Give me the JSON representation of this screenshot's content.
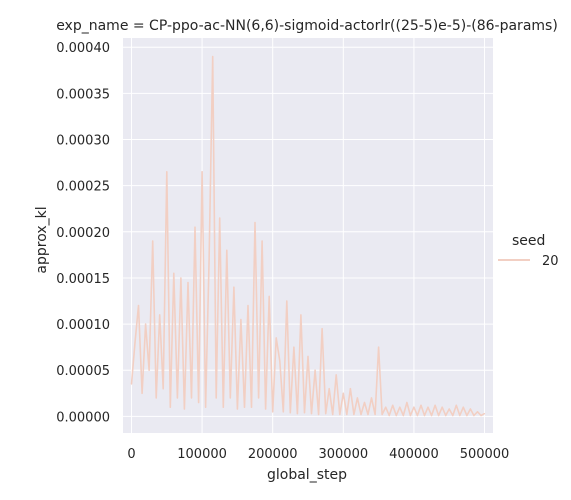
{
  "chart_data": {
    "type": "line",
    "title": "exp_name = CP-ppo-ac-NN(6,6)-sigmoid-actorlr((25-5)e-5)-(86-params)",
    "xlabel": "global_step",
    "ylabel": "approx_kl",
    "xlim": [
      -12000,
      512000
    ],
    "ylim": [
      -1.8e-05,
      0.00041
    ],
    "x_ticks": [
      0,
      100000,
      200000,
      300000,
      400000,
      500000
    ],
    "x_tick_labels": [
      "0",
      "100000",
      "200000",
      "300000",
      "400000",
      "500000"
    ],
    "y_ticks": [
      0.0,
      5e-05,
      0.0001,
      0.00015,
      0.0002,
      0.00025,
      0.0003,
      0.00035,
      0.0004
    ],
    "y_tick_labels": [
      "0.00000",
      "0.00005",
      "0.00010",
      "0.00015",
      "0.00020",
      "0.00025",
      "0.00030",
      "0.00035",
      "0.00040"
    ],
    "grid": true,
    "legend": {
      "title": "seed",
      "placement": "right",
      "entries": [
        "20"
      ]
    },
    "series": [
      {
        "name": "20",
        "color": "#f2cfc3",
        "x": [
          0,
          5000,
          10000,
          15000,
          20000,
          25000,
          30000,
          35000,
          40000,
          45000,
          50000,
          55000,
          60000,
          65000,
          70000,
          75000,
          80000,
          85000,
          90000,
          95000,
          100000,
          105000,
          110000,
          115000,
          120000,
          125000,
          130000,
          135000,
          140000,
          145000,
          150000,
          155000,
          160000,
          165000,
          170000,
          175000,
          180000,
          185000,
          190000,
          195000,
          200000,
          205000,
          210000,
          215000,
          220000,
          225000,
          230000,
          235000,
          240000,
          245000,
          250000,
          255000,
          260000,
          265000,
          270000,
          275000,
          280000,
          285000,
          290000,
          295000,
          300000,
          305000,
          310000,
          315000,
          320000,
          325000,
          330000,
          335000,
          340000,
          345000,
          350000,
          355000,
          360000,
          365000,
          370000,
          375000,
          380000,
          385000,
          390000,
          395000,
          400000,
          405000,
          410000,
          415000,
          420000,
          425000,
          430000,
          435000,
          440000,
          445000,
          450000,
          455000,
          460000,
          465000,
          470000,
          475000,
          480000,
          485000,
          490000,
          495000,
          500000
        ],
        "y": [
          3.5e-05,
          8e-05,
          0.00012,
          2.5e-05,
          0.0001,
          5e-05,
          0.00019,
          2e-05,
          0.00011,
          3e-05,
          0.000265,
          1e-05,
          0.000155,
          2e-05,
          0.00015,
          8e-06,
          0.000145,
          2e-05,
          0.000205,
          1.5e-05,
          0.000265,
          1e-05,
          0.00017,
          0.00039,
          2e-05,
          0.000215,
          1e-05,
          0.00018,
          2e-05,
          0.00014,
          8e-06,
          0.000105,
          1e-05,
          0.00012,
          1e-05,
          0.00021,
          2e-05,
          0.00019,
          8e-06,
          0.00013,
          5e-06,
          8.5e-05,
          6e-05,
          5e-06,
          0.000125,
          4e-06,
          7.5e-05,
          3e-06,
          0.00011,
          4e-06,
          6.5e-05,
          3e-06,
          5e-05,
          2e-06,
          9.5e-05,
          3e-06,
          3e-05,
          2e-06,
          4.5e-05,
          2e-06,
          2.5e-05,
          2e-06,
          3e-05,
          2e-06,
          2e-05,
          2e-06,
          1.5e-05,
          2e-06,
          2e-05,
          2e-06,
          7.5e-05,
          2e-06,
          1e-05,
          1e-06,
          1.2e-05,
          1e-06,
          1e-05,
          1e-06,
          1.5e-05,
          1e-06,
          1e-05,
          1e-06,
          1.2e-05,
          1e-06,
          1e-05,
          1e-06,
          1.2e-05,
          1e-06,
          1e-05,
          1e-06,
          8e-06,
          1e-06,
          1.2e-05,
          1e-06,
          1e-05,
          1e-06,
          8e-06,
          1e-06,
          5e-06,
          1e-06,
          3e-06
        ]
      }
    ]
  },
  "colors": {
    "plot_background": "#eaeaf2",
    "grid": "#ffffff",
    "line": "#f2cfc3"
  }
}
